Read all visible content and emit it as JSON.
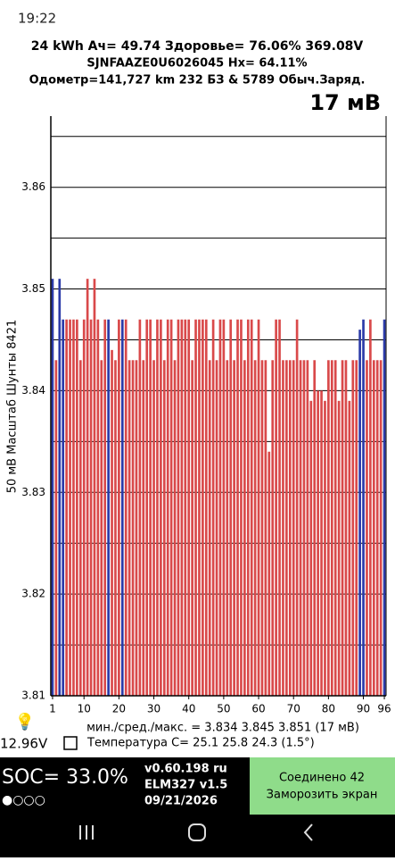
{
  "status_bar": {
    "time": "19:22"
  },
  "header": {
    "line1": "24 kWh  Ач= 49.74  Здоровье= 76.06%  369.08V",
    "line2": "SJNFAAZE0U6026045   Hx= 64.11%",
    "line3": "Одометр=141,727 km 232 БЗ & 5789 Обыч.Заряд.",
    "spread": "17 мВ"
  },
  "chart_data": {
    "type": "bar",
    "y_label": "50 мВ Масштаб  Шунты 8421",
    "x": [
      1,
      2,
      3,
      4,
      5,
      6,
      7,
      8,
      9,
      10,
      11,
      12,
      13,
      14,
      15,
      16,
      17,
      18,
      19,
      20,
      21,
      22,
      23,
      24,
      25,
      26,
      27,
      28,
      29,
      30,
      31,
      32,
      33,
      34,
      35,
      36,
      37,
      38,
      39,
      40,
      41,
      42,
      43,
      44,
      45,
      46,
      47,
      48,
      49,
      50,
      51,
      52,
      53,
      54,
      55,
      56,
      57,
      58,
      59,
      60,
      61,
      62,
      63,
      64,
      65,
      66,
      67,
      68,
      69,
      70,
      71,
      72,
      73,
      74,
      75,
      76,
      77,
      78,
      79,
      80,
      81,
      82,
      83,
      84,
      85,
      86,
      87,
      88,
      89,
      90,
      91,
      92,
      93,
      94,
      95,
      96
    ],
    "values": [
      3.851,
      3.843,
      3.851,
      3.847,
      3.847,
      3.847,
      3.847,
      3.847,
      3.843,
      3.847,
      3.851,
      3.847,
      3.851,
      3.847,
      3.843,
      3.847,
      3.847,
      3.844,
      3.843,
      3.847,
      3.847,
      3.847,
      3.843,
      3.843,
      3.843,
      3.847,
      3.843,
      3.847,
      3.847,
      3.843,
      3.847,
      3.847,
      3.843,
      3.847,
      3.847,
      3.843,
      3.847,
      3.847,
      3.847,
      3.847,
      3.843,
      3.847,
      3.847,
      3.847,
      3.847,
      3.843,
      3.847,
      3.843,
      3.847,
      3.847,
      3.843,
      3.847,
      3.843,
      3.847,
      3.847,
      3.843,
      3.847,
      3.847,
      3.843,
      3.847,
      3.843,
      3.843,
      3.834,
      3.843,
      3.847,
      3.847,
      3.843,
      3.843,
      3.843,
      3.843,
      3.847,
      3.843,
      3.843,
      3.843,
      3.839,
      3.843,
      3.84,
      3.84,
      3.839,
      3.843,
      3.843,
      3.843,
      3.839,
      3.843,
      3.843,
      3.839,
      3.843,
      3.843,
      3.846,
      3.847,
      3.843,
      3.847,
      3.843,
      3.843,
      3.843,
      3.847
    ],
    "color": "#d9494a",
    "highlight_color": "#2b3aa8",
    "highlight_index": [
      0,
      2,
      3,
      16,
      20,
      88,
      89,
      95
    ],
    "xlim": [
      0.5,
      96.5
    ],
    "xticks": [
      1,
      10,
      20,
      30,
      40,
      50,
      60,
      70,
      80,
      90,
      96
    ],
    "ylim": [
      3.81,
      3.867
    ],
    "yticks": [
      3.81,
      3.82,
      3.83,
      3.84,
      3.85,
      3.86
    ],
    "minor_yticks": [
      3.815,
      3.825,
      3.835,
      3.845,
      3.855,
      3.865
    ],
    "grid": true
  },
  "footer": {
    "stats": "мин./сред./макс. = 3.834 3.845 3.851 (17 мВ)",
    "voltage": "12.96V",
    "temperature": "Температура C= 25.1   25.8   24.3   (1.5°)",
    "soc": "SOC= 33.0%",
    "dots": "●○○○",
    "version": "v0.60.198 ru",
    "adapter": "ELM327 v1.5",
    "date": "09/21/2026",
    "connected": "Соединено 42",
    "freeze": "Заморозить экран"
  }
}
